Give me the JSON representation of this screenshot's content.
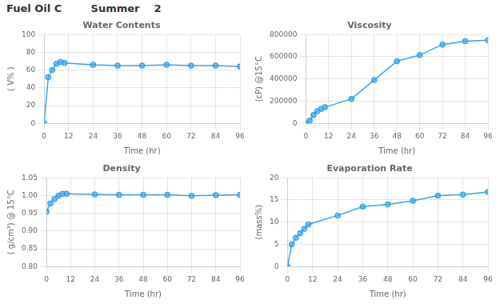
{
  "title": "Fuel Oil C        Summer    2",
  "chart_data": [
    {
      "type": "line",
      "title": "Water Contents",
      "xlabel": "Time (hr)",
      "ylabel": "( V% )",
      "x": [
        0,
        2,
        4,
        6,
        8,
        10,
        24,
        36,
        48,
        60,
        72,
        84,
        96
      ],
      "values": [
        0,
        52,
        60,
        67,
        69,
        68,
        66,
        65,
        65,
        66,
        65,
        65,
        64
      ],
      "xlim": [
        0,
        96
      ],
      "xticks": [
        0,
        12,
        24,
        36,
        48,
        60,
        72,
        84,
        96
      ],
      "ylim": [
        0,
        100
      ],
      "yticks": [
        0,
        20,
        40,
        60,
        80,
        100
      ],
      "grid": true,
      "marker": "circle",
      "line_style": "solid"
    },
    {
      "type": "line",
      "title": "Viscosity",
      "xlabel": "Time (hr)",
      "ylabel": "(cP) @15°C",
      "x": [
        0,
        2,
        4,
        6,
        8,
        10,
        24,
        36,
        48,
        60,
        72,
        84,
        96
      ],
      "values": [
        0,
        25000,
        75000,
        110000,
        130000,
        145000,
        220000,
        390000,
        560000,
        615000,
        710000,
        740000,
        750000
      ],
      "xlim": [
        0,
        96
      ],
      "xticks": [
        0,
        12,
        24,
        36,
        48,
        60,
        72,
        84,
        96
      ],
      "ylim": [
        0,
        800000
      ],
      "yticks": [
        0,
        200000,
        400000,
        600000,
        800000
      ],
      "grid": true,
      "marker": "circle",
      "line_style": "solid"
    },
    {
      "type": "line",
      "title": "Density",
      "xlabel": "Time (hr)",
      "ylabel": "( g/cm³) @ 15°C",
      "x": [
        0,
        2,
        4,
        6,
        8,
        10,
        24,
        36,
        48,
        60,
        72,
        84,
        96
      ],
      "values": [
        0.955,
        0.978,
        0.99,
        1.0,
        1.005,
        1.005,
        1.003,
        1.002,
        1.002,
        1.002,
        0.999,
        1.001,
        1.002
      ],
      "xlim": [
        0,
        96
      ],
      "xticks": [
        0,
        12,
        24,
        36,
        48,
        60,
        72,
        84,
        96
      ],
      "ylim": [
        0.8,
        1.05
      ],
      "yticks": [
        {
          "value": 0.8,
          "label": "0.80"
        },
        {
          "value": 0.85,
          "label": "0.85"
        },
        {
          "value": 0.9,
          "label": "0.90"
        },
        {
          "value": 0.95,
          "label": "0.95"
        },
        {
          "value": 1.0,
          "label": "1.00"
        },
        {
          "value": 1.05,
          "label": "1.05"
        }
      ],
      "grid": true,
      "marker": "circle",
      "line_style": "solid"
    },
    {
      "type": "line",
      "title": "Evaporation Rate",
      "xlabel": "Time (hr)",
      "ylabel": "(mass%)",
      "x": [
        0,
        2,
        4,
        6,
        8,
        10,
        24,
        36,
        48,
        60,
        72,
        84,
        96
      ],
      "values": [
        0,
        5,
        6.5,
        7.5,
        8.5,
        9.5,
        11.5,
        13.5,
        14.0,
        14.8,
        16.0,
        16.2,
        16.8
      ],
      "xlim": [
        0,
        96
      ],
      "xticks": [
        0,
        12,
        24,
        36,
        48,
        60,
        72,
        84,
        96
      ],
      "ylim": [
        0,
        20
      ],
      "yticks": [
        0,
        5,
        10,
        15,
        20
      ],
      "grid": true,
      "marker": "circle",
      "line_style": "solid"
    }
  ]
}
